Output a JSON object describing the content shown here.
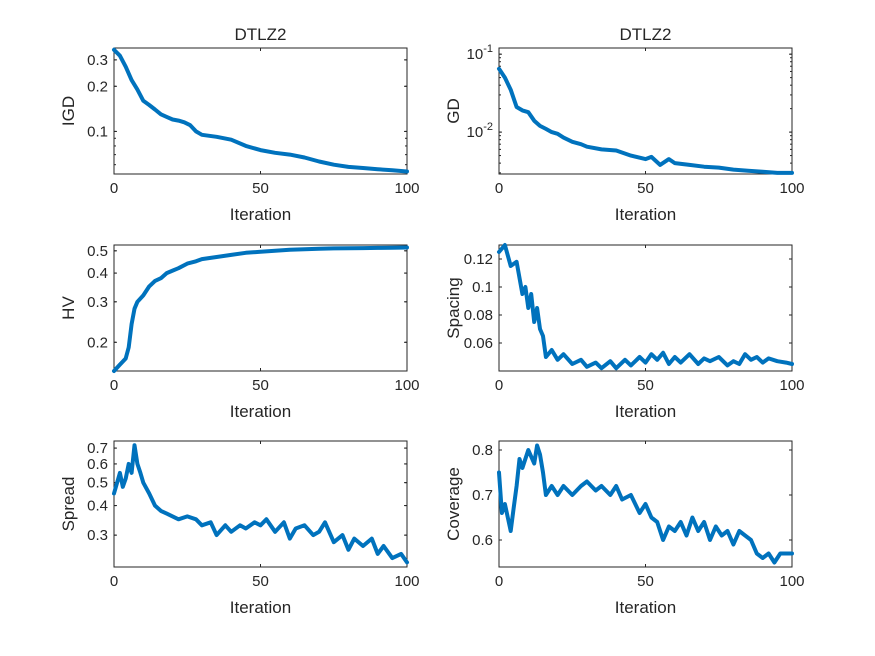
{
  "chart_data": [
    {
      "type": "line",
      "title": "DTLZ2",
      "xlabel": "Iteration",
      "ylabel": "IGD",
      "yscale": "log",
      "xlim": [
        0,
        100
      ],
      "ylim": [
        0.052,
        0.36
      ],
      "xticks": [
        0,
        50,
        100
      ],
      "xtick_labels": [
        "0",
        "50",
        "100"
      ],
      "yticks": [
        0.1,
        0.2,
        0.3
      ],
      "ytick_labels": [
        "0.1",
        "0.2",
        "0.3"
      ],
      "x": [
        0,
        2,
        4,
        6,
        8,
        10,
        12,
        14,
        16,
        18,
        20,
        22,
        24,
        26,
        28,
        30,
        35,
        40,
        45,
        50,
        55,
        60,
        65,
        70,
        75,
        80,
        85,
        90,
        95,
        100
      ],
      "values": [
        0.35,
        0.32,
        0.27,
        0.22,
        0.19,
        0.16,
        0.15,
        0.14,
        0.13,
        0.125,
        0.12,
        0.118,
        0.115,
        0.11,
        0.1,
        0.095,
        0.092,
        0.088,
        0.08,
        0.075,
        0.072,
        0.07,
        0.067,
        0.063,
        0.06,
        0.058,
        0.057,
        0.056,
        0.055,
        0.054
      ],
      "color": "#0072BD"
    },
    {
      "type": "line",
      "title": "DTLZ2",
      "xlabel": "Iteration",
      "ylabel": "GD",
      "yscale": "log",
      "xlim": [
        0,
        100
      ],
      "ylim": [
        0.0029,
        0.12
      ],
      "xticks": [
        0,
        50,
        100
      ],
      "xtick_labels": [
        "0",
        "50",
        "100"
      ],
      "yticks": [
        0.01,
        0.1
      ],
      "ytick_labels": [
        "10^-2",
        "10^-1"
      ],
      "x": [
        0,
        2,
        4,
        6,
        8,
        10,
        12,
        14,
        16,
        18,
        20,
        22,
        25,
        28,
        30,
        35,
        40,
        45,
        50,
        52,
        55,
        58,
        60,
        65,
        70,
        75,
        80,
        85,
        90,
        95,
        100
      ],
      "values": [
        0.065,
        0.05,
        0.035,
        0.021,
        0.019,
        0.018,
        0.014,
        0.012,
        0.011,
        0.01,
        0.0095,
        0.0085,
        0.0075,
        0.007,
        0.0065,
        0.006,
        0.0058,
        0.005,
        0.0045,
        0.0048,
        0.0038,
        0.0045,
        0.004,
        0.0038,
        0.0036,
        0.0035,
        0.0033,
        0.0032,
        0.0031,
        0.003,
        0.003
      ],
      "color": "#0072BD"
    },
    {
      "type": "line",
      "title": "",
      "xlabel": "Iteration",
      "ylabel": "HV",
      "yscale": "log",
      "xlim": [
        0,
        100
      ],
      "ylim": [
        0.15,
        0.53
      ],
      "xticks": [
        0,
        50,
        100
      ],
      "xtick_labels": [
        "0",
        "50",
        "100"
      ],
      "yticks": [
        0.2,
        0.3,
        0.4,
        0.5
      ],
      "ytick_labels": [
        "0.2",
        "0.3",
        "0.4",
        "0.5"
      ],
      "x": [
        0,
        2,
        4,
        5,
        6,
        7,
        8,
        10,
        12,
        14,
        16,
        18,
        20,
        22,
        25,
        28,
        30,
        35,
        40,
        45,
        50,
        55,
        60,
        65,
        70,
        75,
        80,
        85,
        90,
        95,
        100
      ],
      "values": [
        0.15,
        0.16,
        0.17,
        0.19,
        0.24,
        0.28,
        0.3,
        0.32,
        0.35,
        0.37,
        0.38,
        0.4,
        0.41,
        0.42,
        0.44,
        0.45,
        0.46,
        0.47,
        0.48,
        0.49,
        0.495,
        0.5,
        0.505,
        0.508,
        0.51,
        0.512,
        0.513,
        0.514,
        0.515,
        0.516,
        0.517
      ],
      "color": "#0072BD"
    },
    {
      "type": "line",
      "title": "",
      "xlabel": "Iteration",
      "ylabel": "Spacing",
      "yscale": "linear",
      "xlim": [
        0,
        100
      ],
      "ylim": [
        0.04,
        0.13
      ],
      "xticks": [
        0,
        50,
        100
      ],
      "xtick_labels": [
        "0",
        "50",
        "100"
      ],
      "yticks": [
        0.06,
        0.08,
        0.1,
        0.12
      ],
      "ytick_labels": [
        "0.06",
        "0.08",
        "0.1",
        "0.12"
      ],
      "x": [
        0,
        2,
        4,
        6,
        8,
        9,
        10,
        11,
        12,
        13,
        14,
        15,
        16,
        18,
        20,
        22,
        25,
        28,
        30,
        33,
        35,
        38,
        40,
        43,
        45,
        48,
        50,
        52,
        54,
        56,
        58,
        60,
        62,
        65,
        68,
        70,
        72,
        75,
        78,
        80,
        82,
        84,
        86,
        88,
        90,
        92,
        95,
        98,
        100
      ],
      "values": [
        0.125,
        0.13,
        0.115,
        0.118,
        0.095,
        0.1,
        0.085,
        0.095,
        0.075,
        0.085,
        0.07,
        0.065,
        0.05,
        0.055,
        0.048,
        0.052,
        0.045,
        0.048,
        0.043,
        0.046,
        0.042,
        0.047,
        0.042,
        0.048,
        0.044,
        0.05,
        0.046,
        0.052,
        0.048,
        0.053,
        0.045,
        0.05,
        0.046,
        0.052,
        0.045,
        0.049,
        0.047,
        0.05,
        0.044,
        0.047,
        0.045,
        0.052,
        0.048,
        0.05,
        0.046,
        0.049,
        0.047,
        0.046,
        0.045
      ],
      "color": "#0072BD"
    },
    {
      "type": "line",
      "title": "",
      "xlabel": "Iteration",
      "ylabel": "Spread",
      "yscale": "log",
      "xlim": [
        0,
        100
      ],
      "ylim": [
        0.22,
        0.75
      ],
      "xticks": [
        0,
        50,
        100
      ],
      "xtick_labels": [
        "0",
        "50",
        "100"
      ],
      "yticks": [
        0.3,
        0.4,
        0.5,
        0.6,
        0.7
      ],
      "ytick_labels": [
        "0.3",
        "0.4",
        "0.5",
        "0.6",
        "0.7"
      ],
      "x": [
        0,
        2,
        3,
        4,
        5,
        6,
        7,
        8,
        9,
        10,
        12,
        14,
        16,
        18,
        20,
        22,
        25,
        28,
        30,
        33,
        35,
        38,
        40,
        43,
        45,
        48,
        50,
        52,
        55,
        58,
        60,
        62,
        65,
        68,
        70,
        72,
        75,
        78,
        80,
        82,
        85,
        88,
        90,
        92,
        95,
        98,
        100
      ],
      "values": [
        0.45,
        0.55,
        0.48,
        0.52,
        0.6,
        0.55,
        0.72,
        0.6,
        0.55,
        0.5,
        0.45,
        0.4,
        0.38,
        0.37,
        0.36,
        0.35,
        0.36,
        0.35,
        0.33,
        0.34,
        0.3,
        0.33,
        0.31,
        0.33,
        0.32,
        0.34,
        0.33,
        0.35,
        0.31,
        0.34,
        0.29,
        0.32,
        0.33,
        0.3,
        0.31,
        0.34,
        0.28,
        0.3,
        0.26,
        0.29,
        0.27,
        0.29,
        0.25,
        0.27,
        0.24,
        0.25,
        0.23
      ],
      "color": "#0072BD"
    },
    {
      "type": "line",
      "title": "",
      "xlabel": "Iteration",
      "ylabel": "Coverage",
      "yscale": "linear",
      "xlim": [
        0,
        100
      ],
      "ylim": [
        0.54,
        0.82
      ],
      "xticks": [
        0,
        50,
        100
      ],
      "xtick_labels": [
        "0",
        "50",
        "100"
      ],
      "yticks": [
        0.6,
        0.7,
        0.8
      ],
      "ytick_labels": [
        "0.6",
        "0.7",
        "0.8"
      ],
      "x": [
        0,
        1,
        2,
        3,
        4,
        5,
        6,
        7,
        8,
        10,
        12,
        13,
        14,
        15,
        16,
        18,
        20,
        22,
        25,
        28,
        30,
        33,
        35,
        38,
        40,
        42,
        45,
        48,
        50,
        52,
        54,
        56,
        58,
        60,
        62,
        64,
        66,
        68,
        70,
        72,
        74,
        76,
        78,
        80,
        82,
        84,
        86,
        88,
        90,
        92,
        94,
        96,
        98,
        100
      ],
      "values": [
        0.75,
        0.66,
        0.68,
        0.65,
        0.62,
        0.67,
        0.72,
        0.78,
        0.76,
        0.8,
        0.77,
        0.81,
        0.79,
        0.75,
        0.7,
        0.72,
        0.7,
        0.72,
        0.7,
        0.72,
        0.73,
        0.71,
        0.72,
        0.7,
        0.72,
        0.69,
        0.7,
        0.66,
        0.68,
        0.65,
        0.64,
        0.6,
        0.63,
        0.62,
        0.64,
        0.61,
        0.65,
        0.62,
        0.64,
        0.6,
        0.63,
        0.61,
        0.62,
        0.59,
        0.62,
        0.61,
        0.6,
        0.57,
        0.56,
        0.57,
        0.55,
        0.57,
        0.57,
        0.57
      ],
      "color": "#0072BD"
    }
  ]
}
